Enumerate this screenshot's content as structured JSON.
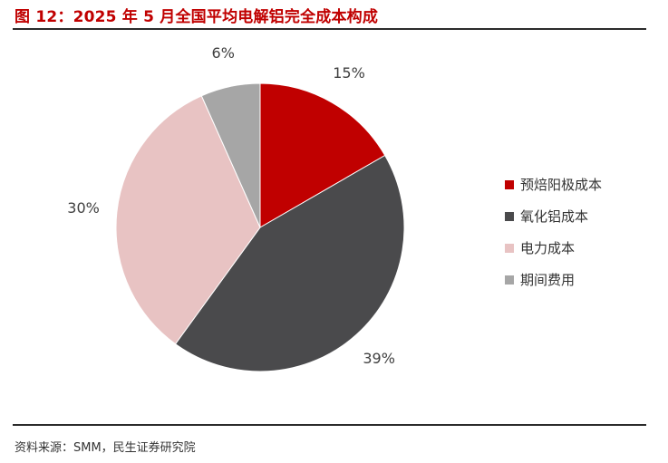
{
  "figure": {
    "title": "图 12：2025 年 5 月全国平均电解铝完全成本构成",
    "source": "资料来源：SMM，民生证券研究院"
  },
  "colors": {
    "title": "#c00000",
    "rules": "#2b2b2b"
  },
  "chart_data": {
    "type": "pie",
    "title": "",
    "slices": [
      {
        "name": "预焙阳极成本",
        "value": 15,
        "label": "15%",
        "color": "#c00000"
      },
      {
        "name": "氧化铝成本",
        "value": 39,
        "label": "39%",
        "color": "#4a4a4c"
      },
      {
        "name": "电力成本",
        "value": 30,
        "label": "30%",
        "color": "#e8c3c3"
      },
      {
        "name": "期间费用",
        "value": 6,
        "label": "6%",
        "color": "#a6a6a6"
      }
    ],
    "start": "12 o'clock",
    "direction": "clockwise",
    "legend_position": "right"
  }
}
